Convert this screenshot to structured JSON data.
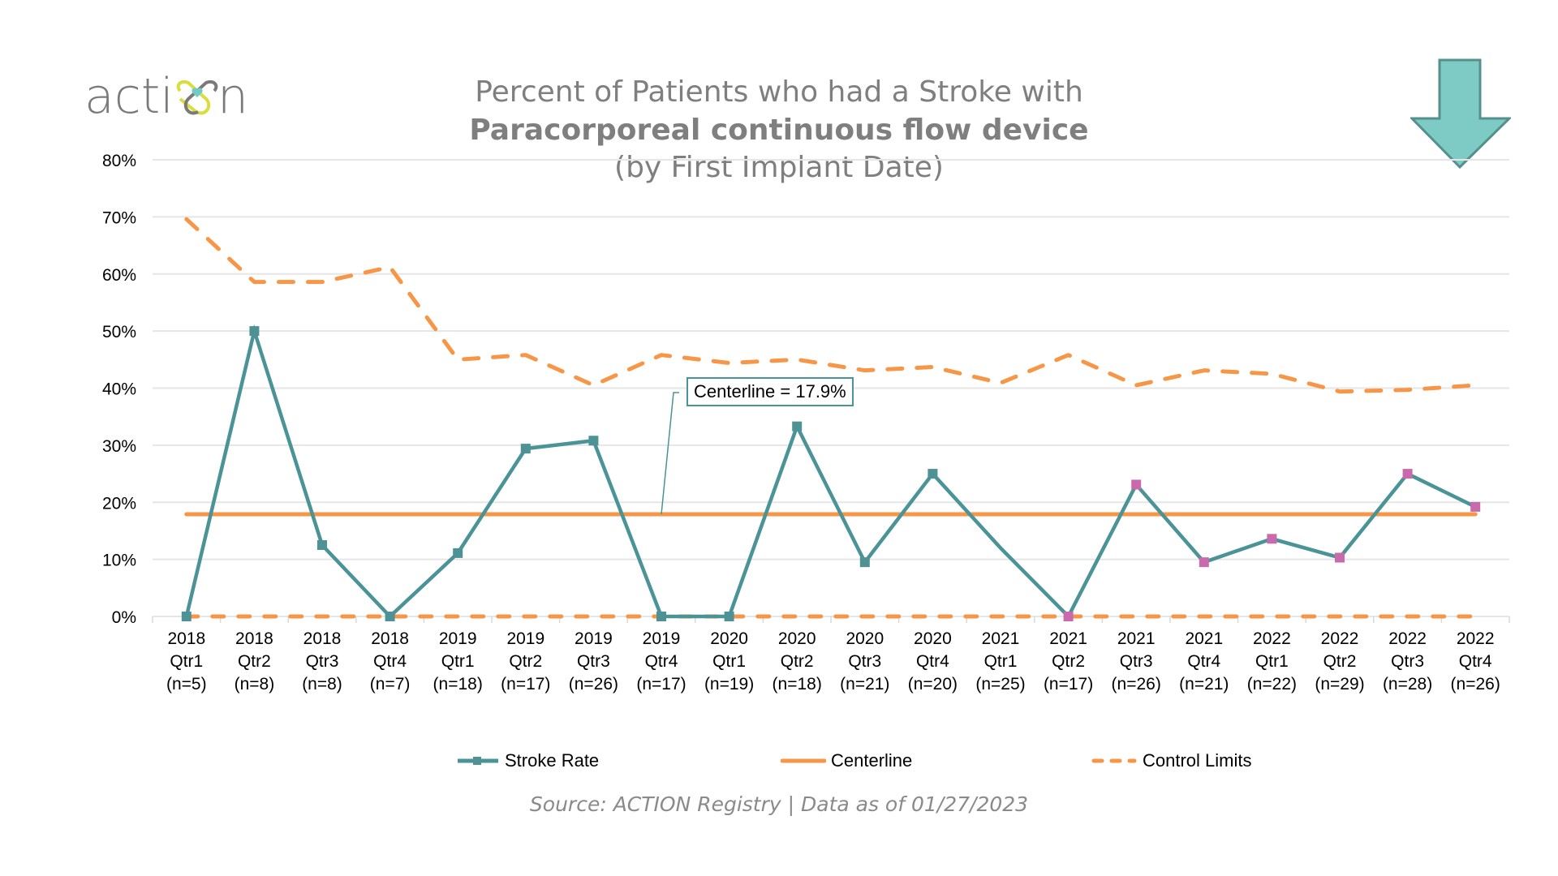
{
  "logo": {
    "text_pre": "acti",
    "text_post": "n",
    "colors": {
      "text": "#7a7a7a",
      "ring": "#d9de3c",
      "heart": "#6ecbc7"
    }
  },
  "title": {
    "line1": "Percent of Patients who had a Stroke with",
    "line2": "Paracorporeal continuous flow device",
    "line3": "(by First Implant Date)"
  },
  "indicator": {
    "icon": "down-arrow-icon",
    "fill": "#7ecac4",
    "stroke": "#55908c",
    "meaning": "lower is better"
  },
  "callout": {
    "label": "Centerline = 17.9%"
  },
  "legend": {
    "stroke_rate": "Stroke Rate",
    "centerline": "Centerline",
    "control_limits": "Control Limits"
  },
  "source": "Source: ACTION Registry  |  Data as of 01/27/2023",
  "colors": {
    "stroke_rate": "#4a9396",
    "marker": "#4f9296",
    "signal_marker": "#c96aad",
    "centerline": "#f79646",
    "gridline": "#e6e6e6"
  },
  "chart_data": {
    "type": "line",
    "title": "Percent of Patients who had a Stroke with Paracorporeal continuous flow device (by First Implant Date)",
    "xlabel": "",
    "ylabel": "",
    "ylim": [
      0,
      80
    ],
    "yticks": [
      "0%",
      "10%",
      "20%",
      "30%",
      "40%",
      "50%",
      "60%",
      "70%",
      "80%"
    ],
    "ytick_values": [
      0,
      10,
      20,
      30,
      40,
      50,
      60,
      70,
      80
    ],
    "grid": true,
    "legend_position": "bottom",
    "categories": [
      {
        "year": "2018",
        "qtr": "Qtr1",
        "n": "(n=5)"
      },
      {
        "year": "2018",
        "qtr": "Qtr2",
        "n": "(n=8)"
      },
      {
        "year": "2018",
        "qtr": "Qtr3",
        "n": "(n=8)"
      },
      {
        "year": "2018",
        "qtr": "Qtr4",
        "n": "(n=7)"
      },
      {
        "year": "2019",
        "qtr": "Qtr1",
        "n": "(n=18)"
      },
      {
        "year": "2019",
        "qtr": "Qtr2",
        "n": "(n=17)"
      },
      {
        "year": "2019",
        "qtr": "Qtr3",
        "n": "(n=26)"
      },
      {
        "year": "2019",
        "qtr": "Qtr4",
        "n": "(n=17)"
      },
      {
        "year": "2020",
        "qtr": "Qtr1",
        "n": "(n=19)"
      },
      {
        "year": "2020",
        "qtr": "Qtr2",
        "n": "(n=18)"
      },
      {
        "year": "2020",
        "qtr": "Qtr3",
        "n": "(n=21)"
      },
      {
        "year": "2020",
        "qtr": "Qtr4",
        "n": "(n=20)"
      },
      {
        "year": "2021",
        "qtr": "Qtr1",
        "n": "(n=25)"
      },
      {
        "year": "2021",
        "qtr": "Qtr2",
        "n": "(n=17)"
      },
      {
        "year": "2021",
        "qtr": "Qtr3",
        "n": "(n=26)"
      },
      {
        "year": "2021",
        "qtr": "Qtr4",
        "n": "(n=21)"
      },
      {
        "year": "2022",
        "qtr": "Qtr1",
        "n": "(n=22)"
      },
      {
        "year": "2022",
        "qtr": "Qtr2",
        "n": "(n=29)"
      },
      {
        "year": "2022",
        "qtr": "Qtr3",
        "n": "(n=28)"
      },
      {
        "year": "2022",
        "qtr": "Qtr4",
        "n": "(n=26)"
      }
    ],
    "series": [
      {
        "name": "Stroke Rate",
        "style": "solid-with-square-markers",
        "values": [
          0,
          50,
          12.5,
          0,
          11.1,
          29.4,
          30.8,
          0,
          0,
          33.3,
          9.5,
          25,
          12,
          0,
          23.1,
          9.5,
          13.6,
          10.3,
          25,
          19.2
        ],
        "signal_points": [
          13,
          14,
          15,
          16,
          17,
          18,
          19
        ],
        "hidden_markers": [
          12
        ]
      },
      {
        "name": "Centerline",
        "style": "solid",
        "values": [
          17.9,
          17.9,
          17.9,
          17.9,
          17.9,
          17.9,
          17.9,
          17.9,
          17.9,
          17.9,
          17.9,
          17.9,
          17.9,
          17.9,
          17.9,
          17.9,
          17.9,
          17.9,
          17.9,
          17.9
        ]
      },
      {
        "name": "Upper Control Limit",
        "legend_group": "Control Limits",
        "style": "dashed",
        "values": [
          69.6,
          58.6,
          58.6,
          61.2,
          45.0,
          45.8,
          40.5,
          45.8,
          44.4,
          45.0,
          43.1,
          43.7,
          40.9,
          45.8,
          40.5,
          43.1,
          42.5,
          39.4,
          39.7,
          40.5
        ]
      },
      {
        "name": "Lower Control Limit",
        "legend_group": "Control Limits",
        "style": "dashed",
        "values": [
          0,
          0,
          0,
          0,
          0,
          0,
          0,
          0,
          0,
          0,
          0,
          0,
          0,
          0,
          0,
          0,
          0,
          0,
          0,
          0
        ]
      }
    ],
    "annotations": [
      {
        "text": "Centerline = 17.9%",
        "points_to": "Centerline",
        "at_category_index": 7
      }
    ]
  }
}
